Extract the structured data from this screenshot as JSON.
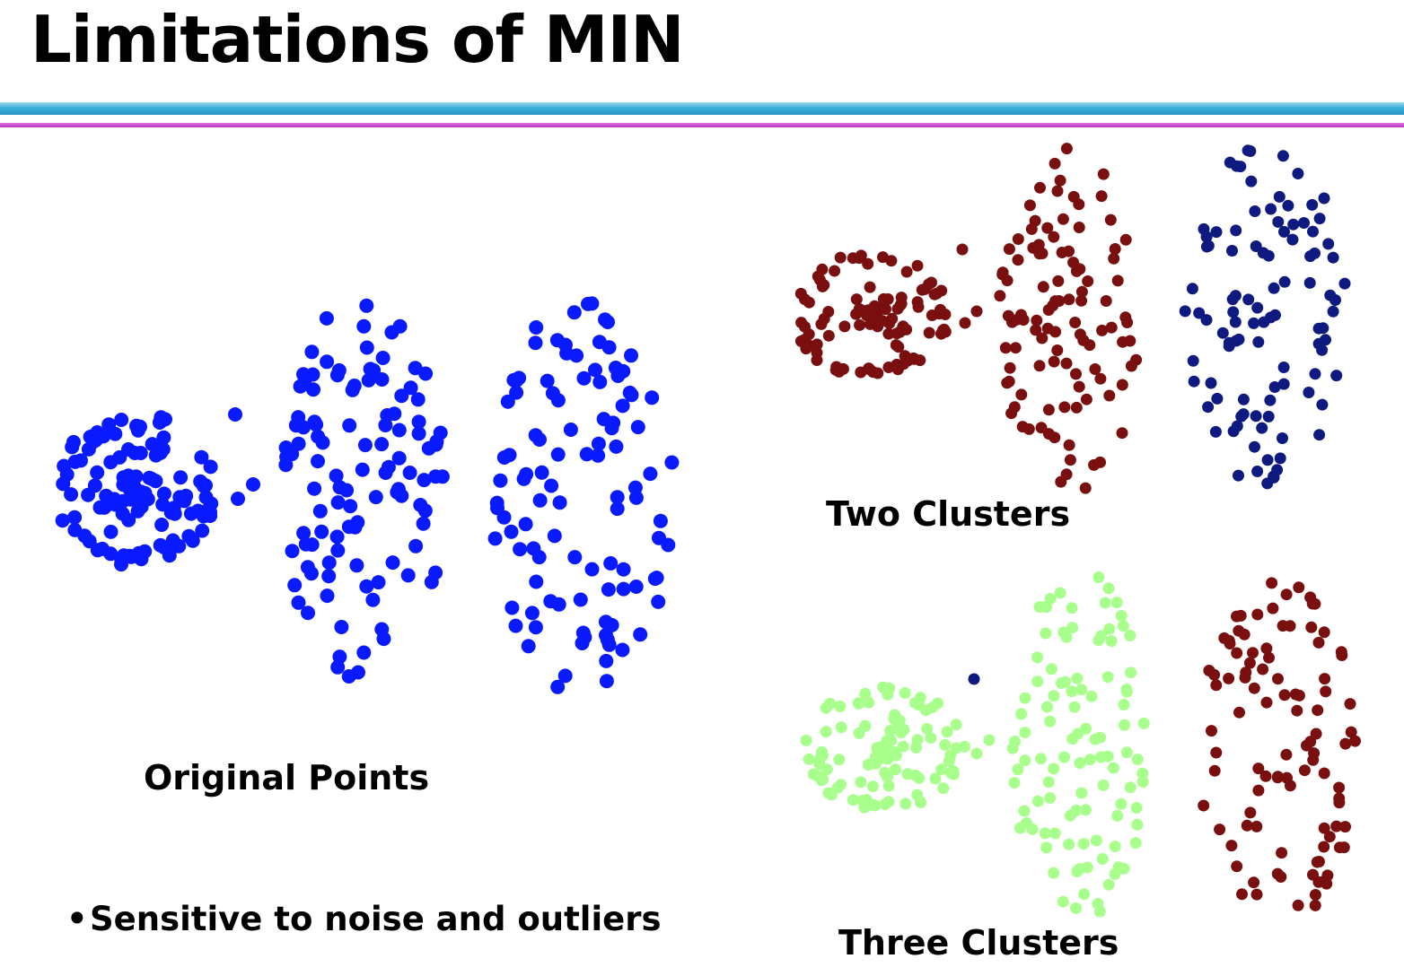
{
  "slide": {
    "title": "Limitations of MIN",
    "bullet": "Sensitive to noise and outliers",
    "bullet_marker": "•"
  },
  "chart_data": [
    {
      "type": "scatter",
      "title": "Original Points",
      "series": [
        {
          "color": "#0a1aff",
          "groups": "all points (ring group, outlier, middle group, right group)"
        }
      ],
      "grid": false,
      "legend": "none"
    },
    {
      "type": "scatter",
      "title": "Two Clusters",
      "series": [
        {
          "color": "#7a0f0f",
          "membership": "ring group + outlier + middle group"
        },
        {
          "color": "#0f1a80",
          "membership": "right group"
        }
      ],
      "grid": false,
      "legend": "none"
    },
    {
      "type": "scatter",
      "title": "Three Clusters",
      "series": [
        {
          "color": "#a8ff8c",
          "membership": "ring group + middle group"
        },
        {
          "color": "#0f1a80",
          "membership": "single outlier point"
        },
        {
          "color": "#7a0f0f",
          "membership": "right group"
        }
      ],
      "grid": false,
      "legend": "none"
    }
  ]
}
